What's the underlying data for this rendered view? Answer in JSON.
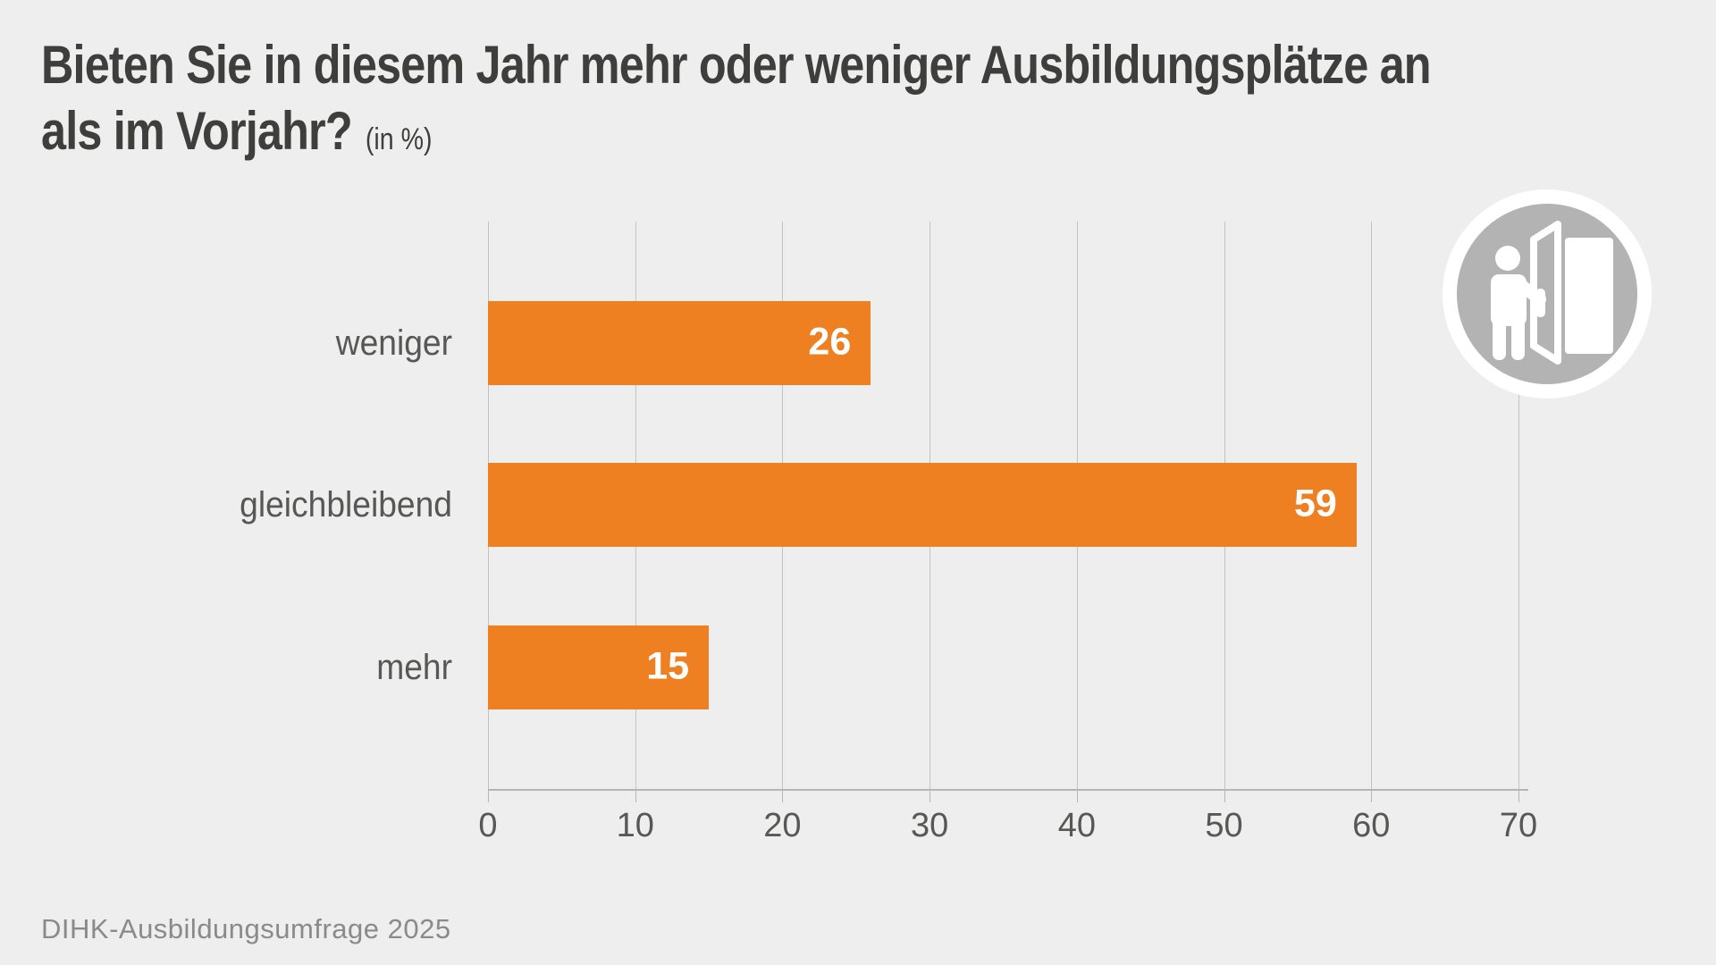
{
  "header": {
    "title_line1": "Bieten Sie in diesem Jahr mehr oder weniger Ausbildungsplätze an",
    "title_line2": "als im Vorjahr?",
    "unit_note": "(in %)"
  },
  "footer": {
    "source": "DIHK-Ausbildungsumfrage 2025"
  },
  "icon": {
    "name": "person-opening-door-icon",
    "circle_color": "#b3b3b3",
    "ring_color": "#ffffff",
    "glyph_color": "#ffffff"
  },
  "colors": {
    "background": "#eeeeee",
    "bar": "#ee8022",
    "title_text": "#3e3e3d",
    "label_text": "#575756",
    "value_text": "#ffffff",
    "gridline": "#c3c3c3",
    "axis_line": "#b5b5b5",
    "source_text": "#8a8a8a"
  },
  "chart_data": {
    "type": "bar",
    "orientation": "horizontal",
    "title": "Bieten Sie in diesem Jahr mehr oder weniger Ausbildungsplätze an als im Vorjahr? (in %)",
    "categories": [
      "weniger",
      "gleichbleibend",
      "mehr"
    ],
    "values": [
      26,
      59,
      15
    ],
    "xlabel": "",
    "ylabel": "",
    "xlim": [
      0,
      70
    ],
    "xticks": [
      0,
      10,
      20,
      30,
      40,
      50,
      60,
      70
    ],
    "grid": true,
    "legend": false,
    "value_label_position": "inside-end"
  }
}
